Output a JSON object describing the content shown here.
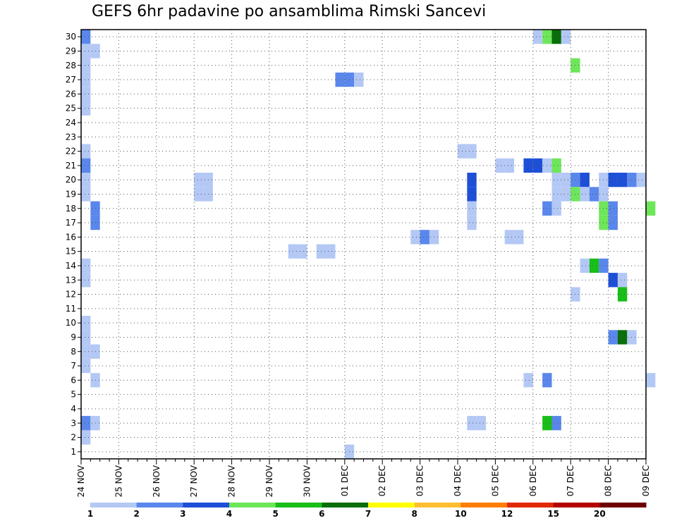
{
  "chart_data": {
    "type": "heatmap",
    "title": "GEFS 6hr padavine po ansamblima Rimski Sancevi",
    "x_ticks": [
      "24 NOV",
      "25 NOV",
      "26 NOV",
      "27 NOV",
      "28 NOV",
      "29 NOV",
      "30 NOV",
      "01 DEC",
      "02 DEC",
      "03 DEC",
      "04 DEC",
      "05 DEC",
      "06 DEC",
      "07 DEC",
      "08 DEC",
      "09 DEC"
    ],
    "y_ticks": [
      "1",
      "2",
      "3",
      "4",
      "5",
      "6",
      "7",
      "8",
      "9",
      "10",
      "11",
      "12",
      "13",
      "14",
      "15",
      "16",
      "17",
      "18",
      "19",
      "20",
      "21",
      "22",
      "23",
      "24",
      "25",
      "26",
      "27",
      "28",
      "29",
      "30"
    ],
    "steps_per_day": 4,
    "members": 30,
    "grid": "dotted",
    "legend": {
      "placement": "bottom",
      "bins": [
        "#b4c8f5",
        "#5a87eb",
        "#1e4fd7",
        "#6ee65a",
        "#19be19",
        "#0a6e0a",
        "#ffff00",
        "#ffbe32",
        "#ff7d00",
        "#e12800",
        "#b40000",
        "#6e0000"
      ],
      "labels": [
        {
          "text": "1",
          "at": 0
        },
        {
          "text": "2",
          "at": 1
        },
        {
          "text": "3",
          "at": 2
        },
        {
          "text": "4",
          "at": 3
        },
        {
          "text": "5",
          "at": 4
        },
        {
          "text": "6",
          "at": 5
        },
        {
          "text": "7",
          "at": 6
        },
        {
          "text": "8",
          "at": 7
        },
        {
          "text": "10",
          "at": 8
        },
        {
          "text": "12",
          "at": 9
        },
        {
          "text": "15",
          "at": 10
        },
        {
          "text": "20",
          "at": 11
        }
      ]
    },
    "cells": [
      {
        "member": 30,
        "step": 0,
        "bin": 1
      },
      {
        "member": 30,
        "step": 48,
        "bin": 0
      },
      {
        "member": 30,
        "step": 49,
        "bin": 3
      },
      {
        "member": 30,
        "step": 50,
        "bin": 5
      },
      {
        "member": 30,
        "step": 51,
        "bin": 0
      },
      {
        "member": 29,
        "step": 0,
        "bin": 0
      },
      {
        "member": 29,
        "step": 1,
        "bin": 0
      },
      {
        "member": 28,
        "step": 0,
        "bin": 0
      },
      {
        "member": 28,
        "step": 52,
        "bin": 3
      },
      {
        "member": 27,
        "step": 0,
        "bin": 0
      },
      {
        "member": 27,
        "step": 27,
        "bin": 1
      },
      {
        "member": 27,
        "step": 28,
        "bin": 1
      },
      {
        "member": 27,
        "step": 29,
        "bin": 0
      },
      {
        "member": 26,
        "step": 0,
        "bin": 0
      },
      {
        "member": 25,
        "step": 0,
        "bin": 0
      },
      {
        "member": 22,
        "step": 0,
        "bin": 0
      },
      {
        "member": 22,
        "step": 40,
        "bin": 0
      },
      {
        "member": 22,
        "step": 41,
        "bin": 0
      },
      {
        "member": 21,
        "step": 0,
        "bin": 1
      },
      {
        "member": 21,
        "step": 44,
        "bin": 0
      },
      {
        "member": 21,
        "step": 45,
        "bin": 0
      },
      {
        "member": 21,
        "step": 47,
        "bin": 2
      },
      {
        "member": 21,
        "step": 48,
        "bin": 2
      },
      {
        "member": 21,
        "step": 49,
        "bin": 0
      },
      {
        "member": 21,
        "step": 50,
        "bin": 3
      },
      {
        "member": 20,
        "step": 0,
        "bin": 0
      },
      {
        "member": 20,
        "step": 12,
        "bin": 0
      },
      {
        "member": 20,
        "step": 13,
        "bin": 0
      },
      {
        "member": 20,
        "step": 41,
        "bin": 2
      },
      {
        "member": 20,
        "step": 50,
        "bin": 0
      },
      {
        "member": 20,
        "step": 51,
        "bin": 0
      },
      {
        "member": 20,
        "step": 52,
        "bin": 1
      },
      {
        "member": 20,
        "step": 53,
        "bin": 2
      },
      {
        "member": 20,
        "step": 55,
        "bin": 0
      },
      {
        "member": 20,
        "step": 56,
        "bin": 2
      },
      {
        "member": 20,
        "step": 57,
        "bin": 2
      },
      {
        "member": 20,
        "step": 58,
        "bin": 1
      },
      {
        "member": 20,
        "step": 59,
        "bin": 0
      },
      {
        "member": 19,
        "step": 0,
        "bin": 0
      },
      {
        "member": 19,
        "step": 12,
        "bin": 0
      },
      {
        "member": 19,
        "step": 13,
        "bin": 0
      },
      {
        "member": 19,
        "step": 41,
        "bin": 2
      },
      {
        "member": 19,
        "step": 50,
        "bin": 0
      },
      {
        "member": 19,
        "step": 51,
        "bin": 0
      },
      {
        "member": 19,
        "step": 52,
        "bin": 3
      },
      {
        "member": 19,
        "step": 53,
        "bin": 0
      },
      {
        "member": 19,
        "step": 54,
        "bin": 1
      },
      {
        "member": 19,
        "step": 55,
        "bin": 0
      },
      {
        "member": 18,
        "step": 1,
        "bin": 1
      },
      {
        "member": 18,
        "step": 41,
        "bin": 0
      },
      {
        "member": 18,
        "step": 49,
        "bin": 1
      },
      {
        "member": 18,
        "step": 50,
        "bin": 0
      },
      {
        "member": 18,
        "step": 55,
        "bin": 3
      },
      {
        "member": 18,
        "step": 56,
        "bin": 1
      },
      {
        "member": 18,
        "step": 60,
        "bin": 3
      },
      {
        "member": 17,
        "step": 1,
        "bin": 1
      },
      {
        "member": 17,
        "step": 41,
        "bin": 0
      },
      {
        "member": 17,
        "step": 55,
        "bin": 3
      },
      {
        "member": 17,
        "step": 56,
        "bin": 1
      },
      {
        "member": 16,
        "step": 35,
        "bin": 0
      },
      {
        "member": 16,
        "step": 36,
        "bin": 1
      },
      {
        "member": 16,
        "step": 37,
        "bin": 0
      },
      {
        "member": 16,
        "step": 45,
        "bin": 0
      },
      {
        "member": 16,
        "step": 46,
        "bin": 0
      },
      {
        "member": 15,
        "step": 22,
        "bin": 0
      },
      {
        "member": 15,
        "step": 23,
        "bin": 0
      },
      {
        "member": 15,
        "step": 25,
        "bin": 0
      },
      {
        "member": 15,
        "step": 26,
        "bin": 0
      },
      {
        "member": 14,
        "step": 0,
        "bin": 0
      },
      {
        "member": 14,
        "step": 53,
        "bin": 0
      },
      {
        "member": 14,
        "step": 54,
        "bin": 4
      },
      {
        "member": 14,
        "step": 55,
        "bin": 1
      },
      {
        "member": 13,
        "step": 0,
        "bin": 0
      },
      {
        "member": 13,
        "step": 56,
        "bin": 2
      },
      {
        "member": 13,
        "step": 57,
        "bin": 0
      },
      {
        "member": 12,
        "step": 52,
        "bin": 0
      },
      {
        "member": 12,
        "step": 57,
        "bin": 4
      },
      {
        "member": 10,
        "step": 0,
        "bin": 0
      },
      {
        "member": 9,
        "step": 0,
        "bin": 0
      },
      {
        "member": 9,
        "step": 56,
        "bin": 1
      },
      {
        "member": 9,
        "step": 57,
        "bin": 5
      },
      {
        "member": 9,
        "step": 58,
        "bin": 0
      },
      {
        "member": 8,
        "step": 0,
        "bin": 0
      },
      {
        "member": 8,
        "step": 1,
        "bin": 0
      },
      {
        "member": 7,
        "step": 0,
        "bin": 0
      },
      {
        "member": 6,
        "step": 1,
        "bin": 0
      },
      {
        "member": 6,
        "step": 47,
        "bin": 0
      },
      {
        "member": 6,
        "step": 49,
        "bin": 1
      },
      {
        "member": 6,
        "step": 60,
        "bin": 0
      },
      {
        "member": 3,
        "step": 0,
        "bin": 1
      },
      {
        "member": 3,
        "step": 1,
        "bin": 0
      },
      {
        "member": 3,
        "step": 41,
        "bin": 0
      },
      {
        "member": 3,
        "step": 42,
        "bin": 0
      },
      {
        "member": 3,
        "step": 49,
        "bin": 4
      },
      {
        "member": 3,
        "step": 50,
        "bin": 1
      },
      {
        "member": 2,
        "step": 0,
        "bin": 0
      },
      {
        "member": 1,
        "step": 28,
        "bin": 0
      }
    ]
  }
}
